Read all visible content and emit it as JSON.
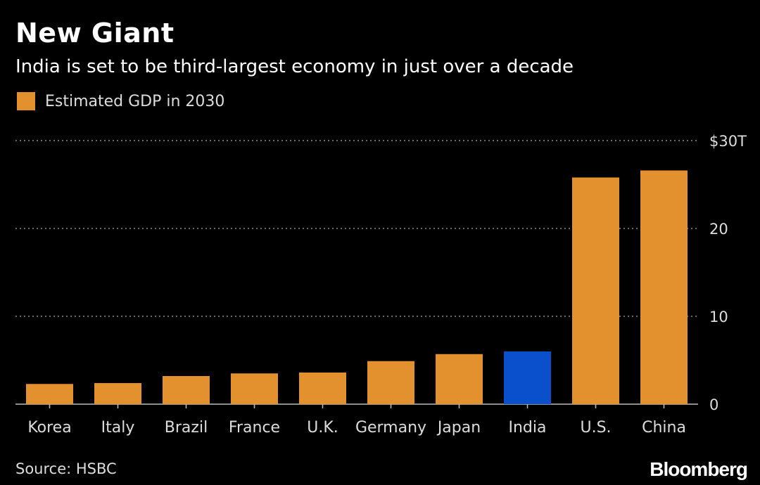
{
  "header": {
    "title": "New Giant",
    "subtitle": "India is set to be third-largest economy in just over a decade"
  },
  "legend": {
    "label": "Estimated GDP in 2030",
    "color": "#E3902E"
  },
  "footer": {
    "source": "Source: HSBC",
    "brand": "Bloomberg"
  },
  "colors": {
    "bar": "#E3902E",
    "highlight": "#0A50CC",
    "grid": "#8a8a8a",
    "tick_text": "#dddddd"
  },
  "chart_data": {
    "type": "bar",
    "title": "New Giant",
    "subtitle": "India is set to be third-largest economy in just over a decade",
    "categories": [
      "Korea",
      "Italy",
      "Brazil",
      "France",
      "U.K.",
      "Germany",
      "Japan",
      "India",
      "U.S.",
      "China"
    ],
    "series": [
      {
        "name": "Estimated GDP in 2030",
        "values": [
          2.3,
          2.4,
          3.2,
          3.5,
          3.6,
          4.9,
          5.7,
          6.0,
          25.8,
          26.6
        ]
      }
    ],
    "highlight": "India",
    "y_ticks": [
      0,
      10,
      20,
      30
    ],
    "y_tick_labels": [
      "0",
      "10",
      "20",
      "$30T"
    ],
    "ylim": [
      0,
      30
    ],
    "xlabel": "",
    "ylabel": "",
    "grid": true,
    "legend_position": "top-left",
    "y_axis_side": "right"
  }
}
